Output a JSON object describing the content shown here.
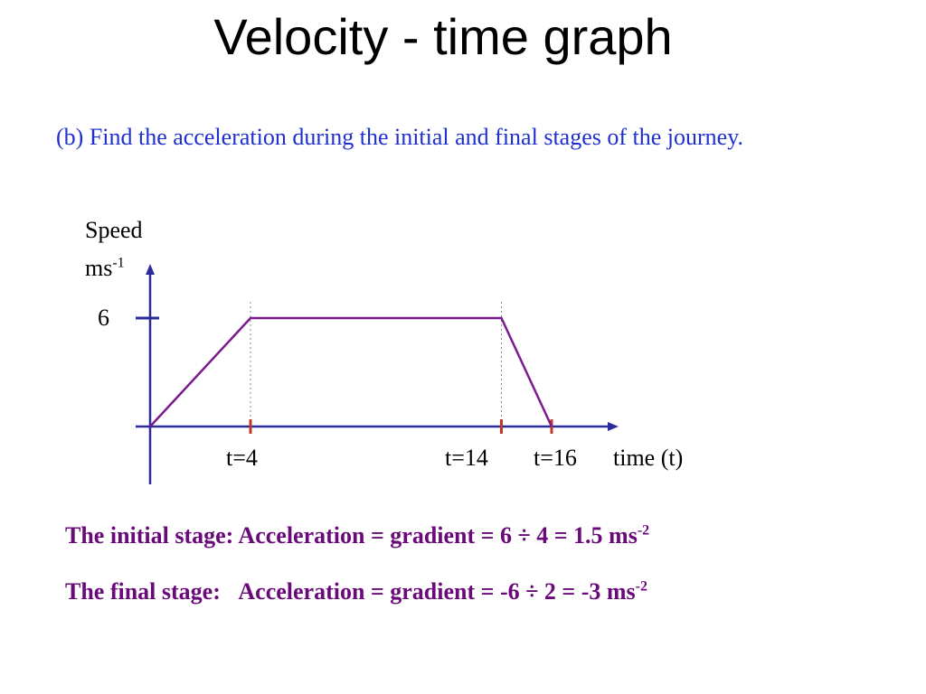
{
  "title": "Velocity - time graph",
  "question": "(b) Find the acceleration during the initial and final stages of the journey.",
  "chart_data": {
    "type": "line",
    "ylabel": "Speed",
    "yunit": "ms",
    "yunit_exp": "-1",
    "xlabel": "time  (t)",
    "yticks": [
      "6"
    ],
    "xticks": [
      "t=4",
      "t=14",
      "t=16"
    ],
    "points": [
      {
        "t": 0,
        "v": 0
      },
      {
        "t": 4,
        "v": 6
      },
      {
        "t": 14,
        "v": 6
      },
      {
        "t": 16,
        "v": 0
      }
    ],
    "xlim": [
      0,
      19.3
    ],
    "ylim": [
      0,
      8
    ],
    "line_color": "#7a1a8c",
    "axis_color": "#2b2b9b",
    "tick_color": "#c0392b"
  },
  "answers": [
    {
      "stage": "The initial stage:",
      "text": "Acceleration = gradient = 6 ÷ 4  = 1.5 ms",
      "exp": "-2"
    },
    {
      "stage": "The final stage:",
      "text": "Acceleration = gradient = -6 ÷ 2 = -3 ms",
      "exp": "-2"
    }
  ]
}
